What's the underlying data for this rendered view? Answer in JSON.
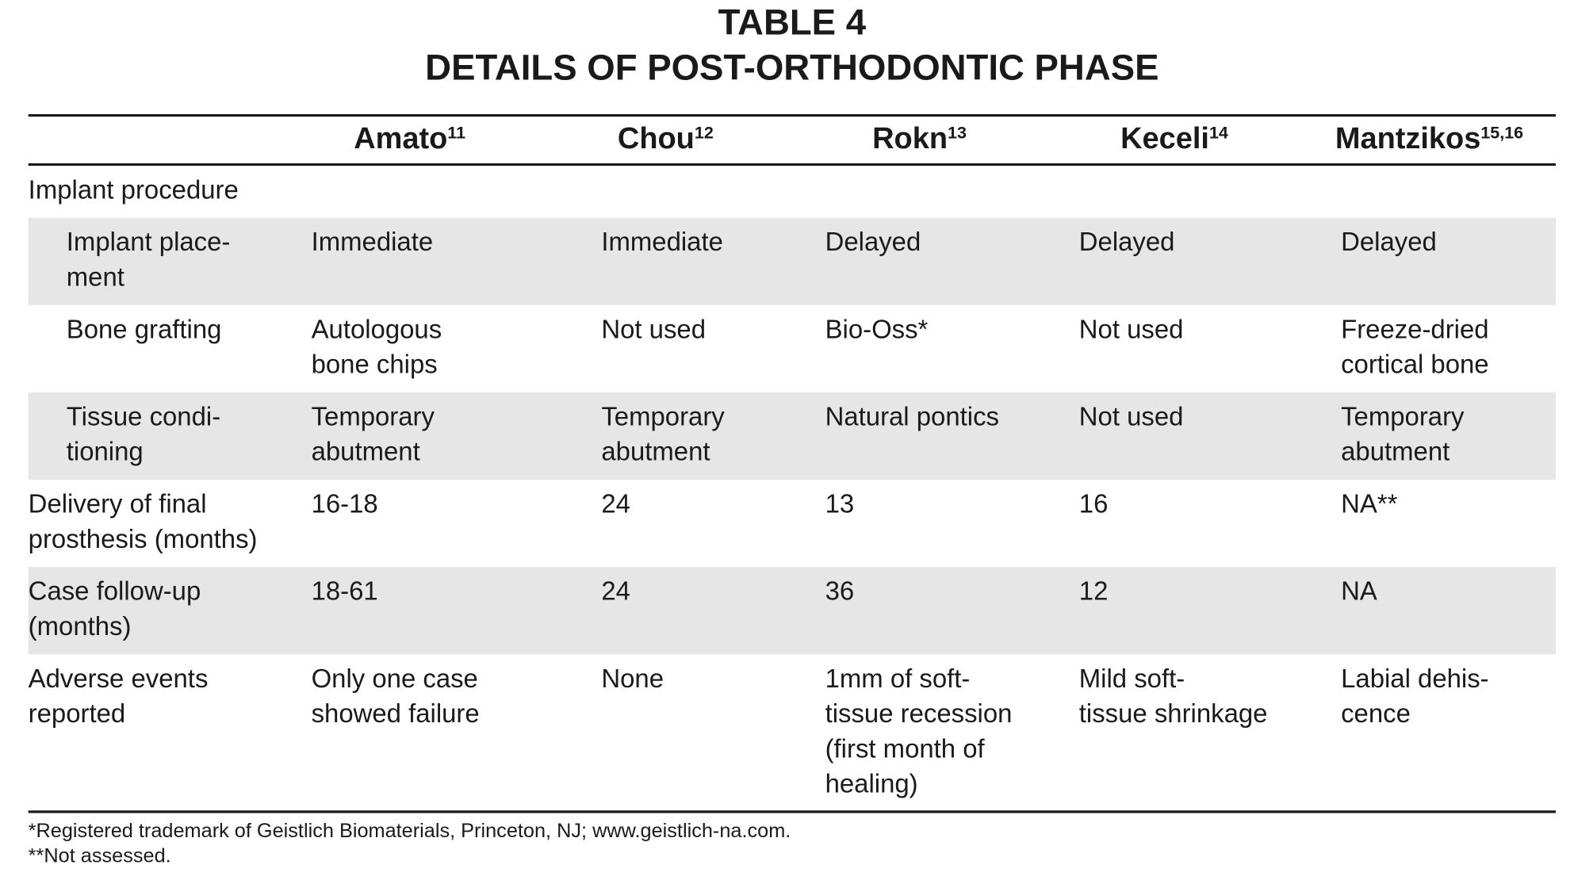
{
  "title": [
    "TABLE 4",
    "DETAILS OF POST-ORTHODONTIC PHASE"
  ],
  "table": {
    "columns": [
      {
        "name": "Amato",
        "ref": "11"
      },
      {
        "name": "Chou",
        "ref": "12"
      },
      {
        "name": "Rokn",
        "ref": "13"
      },
      {
        "name": "Keceli",
        "ref": "14"
      },
      {
        "name": "Mantzikos",
        "ref": "15,16"
      }
    ],
    "group": {
      "label": "Implant procedure",
      "rows": [
        {
          "label": [
            "Implant place-",
            "ment"
          ],
          "cells": [
            [
              "Immediate"
            ],
            [
              "Immediate"
            ],
            [
              "Delayed"
            ],
            [
              "Delayed"
            ],
            [
              "Delayed"
            ]
          ]
        },
        {
          "label": [
            "Bone grafting"
          ],
          "cells": [
            [
              "Autologous",
              "bone chips"
            ],
            [
              "Not used"
            ],
            [
              "Bio-Oss*"
            ],
            [
              "Not used"
            ],
            [
              "Freeze-dried",
              "cortical bone"
            ]
          ]
        },
        {
          "label": [
            "Tissue condi-",
            "tioning"
          ],
          "cells": [
            [
              "Temporary",
              "abutment"
            ],
            [
              "Temporary",
              "abutment"
            ],
            [
              "Natural pontics"
            ],
            [
              "Not used"
            ],
            [
              "Temporary",
              "abutment"
            ]
          ]
        }
      ]
    },
    "rows": [
      {
        "label": [
          "Delivery of final",
          "prosthesis (months)"
        ],
        "cells": [
          [
            "16-18"
          ],
          [
            "24"
          ],
          [
            "13"
          ],
          [
            "16"
          ],
          [
            "NA**"
          ]
        ]
      },
      {
        "label": [
          "Case follow-up",
          "(months)"
        ],
        "cells": [
          [
            "18-61"
          ],
          [
            "24"
          ],
          [
            "36"
          ],
          [
            "12"
          ],
          [
            "NA"
          ]
        ]
      },
      {
        "label": [
          "Adverse events",
          "reported"
        ],
        "cells": [
          [
            "Only one case",
            "showed failure"
          ],
          [
            "None"
          ],
          [
            "1mm of soft-",
            "tissue recession",
            "(first month of",
            "healing)"
          ],
          [
            "Mild soft-",
            "tissue shrinkage"
          ],
          [
            "Labial dehis-",
            "cence"
          ]
        ]
      }
    ]
  },
  "footnotes": [
    "*Registered trademark of Geistlich Biomaterials, Princeton, NJ; www.geistlich-na.com.",
    "**Not assessed."
  ]
}
